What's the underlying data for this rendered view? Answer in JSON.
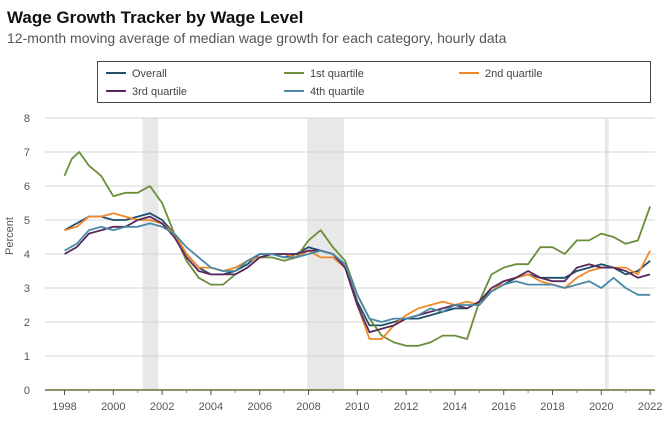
{
  "header": {
    "title": "Wage Growth Tracker by Wage Level",
    "subtitle": "12-month moving average of median wage growth for each category, hourly data"
  },
  "chart_data": {
    "type": "line",
    "title": "Wage Growth Tracker by Wage Level",
    "subtitle": "12-month moving average of median wage growth for each category, hourly data",
    "ylabel": "Percent",
    "xlabel": "",
    "xlim": [
      1997.2,
      2022.2
    ],
    "ylim": [
      0,
      8
    ],
    "y_ticks": [
      "0",
      "1",
      "2",
      "3",
      "4",
      "5",
      "6",
      "7",
      "8"
    ],
    "x_ticks": [
      "1998",
      "2000",
      "2002",
      "2004",
      "2006",
      "2008",
      "2010",
      "2012",
      "2014",
      "2016",
      "2018",
      "2020",
      "2022"
    ],
    "grid": "horizontal",
    "legend_position": "top",
    "recessions": [
      [
        2001.2,
        2001.85
      ],
      [
        2007.95,
        2009.45
      ],
      [
        2020.15,
        2020.3
      ]
    ],
    "series": [
      {
        "name": "Overall",
        "color": "#1f4e6b",
        "x": [
          1998,
          1998.5,
          1999,
          1999.5,
          2000,
          2000.5,
          2001,
          2001.5,
          2002,
          2002.5,
          2003,
          2003.5,
          2004,
          2004.5,
          2005,
          2005.5,
          2006,
          2006.5,
          2007,
          2007.5,
          2008,
          2008.5,
          2009,
          2009.5,
          2010,
          2010.5,
          2011,
          2011.5,
          2012,
          2012.5,
          2013,
          2013.5,
          2014,
          2014.5,
          2015,
          2015.5,
          2016,
          2016.5,
          2017,
          2017.5,
          2018,
          2018.5,
          2019,
          2019.5,
          2020,
          2020.5,
          2021,
          2021.5,
          2022
        ],
        "y": [
          4.7,
          4.9,
          5.1,
          5.1,
          5.0,
          5.0,
          5.1,
          5.2,
          5.0,
          4.6,
          4.0,
          3.6,
          3.4,
          3.4,
          3.5,
          3.7,
          4.0,
          4.0,
          3.9,
          4.0,
          4.2,
          4.1,
          4.0,
          3.6,
          2.6,
          1.9,
          1.9,
          2.0,
          2.1,
          2.1,
          2.2,
          2.3,
          2.4,
          2.4,
          2.6,
          2.9,
          3.1,
          3.3,
          3.4,
          3.3,
          3.3,
          3.3,
          3.5,
          3.6,
          3.7,
          3.6,
          3.4,
          3.5,
          3.8
        ]
      },
      {
        "name": "1st quartile",
        "color": "#6b8e3a",
        "x": [
          1998,
          1998.3,
          1998.6,
          1999,
          1999.5,
          2000,
          2000.5,
          2001,
          2001.5,
          2002,
          2002.5,
          2003,
          2003.5,
          2004,
          2004.5,
          2005,
          2005.5,
          2006,
          2006.5,
          2007,
          2007.5,
          2008,
          2008.5,
          2009,
          2009.5,
          2010,
          2010.5,
          2011,
          2011.5,
          2012,
          2012.5,
          2013,
          2013.5,
          2014,
          2014.5,
          2015,
          2015.5,
          2016,
          2016.5,
          2017,
          2017.5,
          2018,
          2018.5,
          2019,
          2019.5,
          2020,
          2020.5,
          2021,
          2021.5,
          2022
        ],
        "y": [
          6.3,
          6.8,
          7.0,
          6.6,
          6.3,
          5.7,
          5.8,
          5.8,
          6.0,
          5.5,
          4.6,
          3.8,
          3.3,
          3.1,
          3.1,
          3.4,
          3.6,
          3.9,
          3.9,
          3.8,
          3.9,
          4.4,
          4.7,
          4.2,
          3.8,
          2.8,
          2.1,
          1.6,
          1.4,
          1.3,
          1.3,
          1.4,
          1.6,
          1.6,
          1.5,
          2.6,
          3.4,
          3.6,
          3.7,
          3.7,
          4.2,
          4.2,
          4.0,
          4.4,
          4.4,
          4.6,
          4.5,
          4.3,
          4.4,
          5.4
        ]
      },
      {
        "name": "2nd quartile",
        "color": "#f0882a",
        "x": [
          1998,
          1998.5,
          1999,
          1999.5,
          2000,
          2000.5,
          2001,
          2001.5,
          2002,
          2002.5,
          2003,
          2003.5,
          2004,
          2004.5,
          2005,
          2005.5,
          2006,
          2006.5,
          2007,
          2007.5,
          2008,
          2008.5,
          2009,
          2009.5,
          2010,
          2010.5,
          2011,
          2011.5,
          2012,
          2012.5,
          2013,
          2013.5,
          2014,
          2014.5,
          2015,
          2015.5,
          2016,
          2016.5,
          2017,
          2017.5,
          2018,
          2018.5,
          2019,
          2019.5,
          2020,
          2020.5,
          2021,
          2021.5,
          2022
        ],
        "y": [
          4.7,
          4.8,
          5.1,
          5.1,
          5.2,
          5.1,
          5.0,
          5.0,
          4.9,
          4.6,
          4.0,
          3.6,
          3.6,
          3.5,
          3.6,
          3.8,
          3.9,
          4.0,
          4.0,
          3.9,
          4.1,
          3.9,
          3.9,
          3.6,
          2.5,
          1.5,
          1.5,
          1.9,
          2.2,
          2.4,
          2.5,
          2.6,
          2.5,
          2.6,
          2.5,
          2.9,
          3.2,
          3.3,
          3.4,
          3.2,
          3.1,
          3.0,
          3.3,
          3.5,
          3.6,
          3.6,
          3.6,
          3.4,
          4.1
        ]
      },
      {
        "name": "3rd quartile",
        "color": "#5a2a5e",
        "x": [
          1998,
          1998.5,
          1999,
          1999.5,
          2000,
          2000.5,
          2001,
          2001.5,
          2002,
          2002.5,
          2003,
          2003.5,
          2004,
          2004.5,
          2005,
          2005.5,
          2006,
          2006.5,
          2007,
          2007.5,
          2008,
          2008.5,
          2009,
          2009.5,
          2010,
          2010.5,
          2011,
          2011.5,
          2012,
          2012.5,
          2013,
          2013.5,
          2014,
          2014.5,
          2015,
          2015.5,
          2016,
          2016.5,
          2017,
          2017.5,
          2018,
          2018.5,
          2019,
          2019.5,
          2020,
          2020.5,
          2021,
          2021.5,
          2022
        ],
        "y": [
          4.0,
          4.2,
          4.6,
          4.7,
          4.8,
          4.8,
          5.0,
          5.1,
          4.9,
          4.5,
          3.9,
          3.5,
          3.4,
          3.4,
          3.4,
          3.6,
          3.9,
          4.0,
          4.0,
          4.0,
          4.1,
          4.1,
          4.0,
          3.6,
          2.5,
          1.7,
          1.8,
          1.9,
          2.1,
          2.2,
          2.3,
          2.4,
          2.5,
          2.4,
          2.6,
          3.0,
          3.2,
          3.3,
          3.5,
          3.3,
          3.2,
          3.2,
          3.6,
          3.7,
          3.6,
          3.6,
          3.5,
          3.3,
          3.4
        ]
      },
      {
        "name": "4th quartile",
        "color": "#4a8aa6",
        "x": [
          1998,
          1998.5,
          1999,
          1999.5,
          2000,
          2000.5,
          2001,
          2001.5,
          2002,
          2002.5,
          2003,
          2003.5,
          2004,
          2004.5,
          2005,
          2005.5,
          2006,
          2006.5,
          2007,
          2007.5,
          2008,
          2008.5,
          2009,
          2009.5,
          2010,
          2010.5,
          2011,
          2011.5,
          2012,
          2012.5,
          2013,
          2013.5,
          2014,
          2014.5,
          2015,
          2015.5,
          2016,
          2016.5,
          2017,
          2017.5,
          2018,
          2018.5,
          2019,
          2019.5,
          2020,
          2020.5,
          2021,
          2021.5,
          2022
        ],
        "y": [
          4.1,
          4.3,
          4.7,
          4.8,
          4.7,
          4.8,
          4.8,
          4.9,
          4.8,
          4.6,
          4.2,
          3.9,
          3.6,
          3.5,
          3.5,
          3.8,
          4.0,
          4.0,
          3.9,
          3.9,
          4.0,
          4.1,
          4.0,
          3.7,
          2.8,
          2.1,
          2.0,
          2.1,
          2.1,
          2.2,
          2.4,
          2.3,
          2.5,
          2.5,
          2.5,
          2.9,
          3.1,
          3.2,
          3.1,
          3.1,
          3.1,
          3.0,
          3.1,
          3.2,
          3.0,
          3.3,
          3.0,
          2.8,
          2.8
        ]
      }
    ]
  }
}
